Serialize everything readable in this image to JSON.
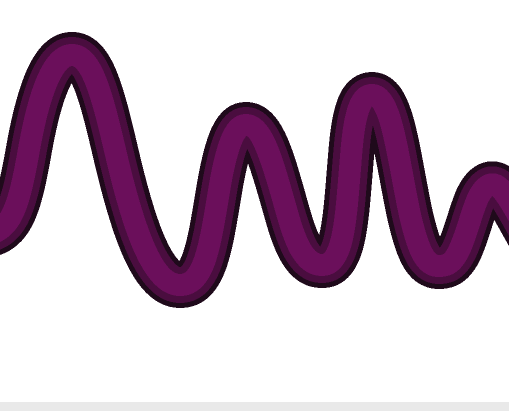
{
  "scene": {
    "subject": "wavy-stroke",
    "colors": {
      "background": "#ffffff",
      "outline": "#1f0a1b",
      "body": "#6b0f5b",
      "midtone": "#4a0d3f",
      "bottom_strip": "#e9e9e9"
    }
  }
}
